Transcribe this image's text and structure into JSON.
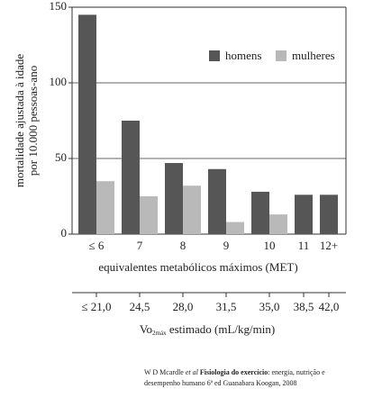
{
  "chart_data": {
    "type": "bar",
    "categories": [
      "≤ 6",
      "7",
      "8",
      "9",
      "10",
      "11",
      "12+"
    ],
    "series": [
      {
        "name": "homens",
        "color": "#565656",
        "values": [
          145,
          75,
          47,
          43,
          28,
          26,
          26
        ]
      },
      {
        "name": "mulheres",
        "color": "#b9b9b9",
        "values": [
          35,
          25,
          32,
          8,
          13,
          null,
          null
        ]
      }
    ],
    "ylim": [
      0,
      150
    ],
    "yticks": [
      0,
      50,
      100,
      150
    ],
    "grid": true,
    "y_label_lines": [
      "mortalidade ajustada à idade",
      "por 10.000 pessoas-ano"
    ],
    "x_label": "equivalentes metabólicos máximos (MET)",
    "x2_categories": [
      "≤ 21,0",
      "24,5",
      "28,0",
      "31,5",
      "35,0",
      "38,5",
      "42,0"
    ],
    "x2_label": {
      "main": "Vo",
      "sub": "2máx",
      "rest": " estimado (mL/kg/min)"
    },
    "source": {
      "author": "W D Mcardle ",
      "etal": "et al",
      "title": " Fisiologia do exercício",
      "rest1": ": energia, nutrição e",
      "line2": "desempenho humano 6ª ed Guanabara Koogan, 2008"
    }
  }
}
